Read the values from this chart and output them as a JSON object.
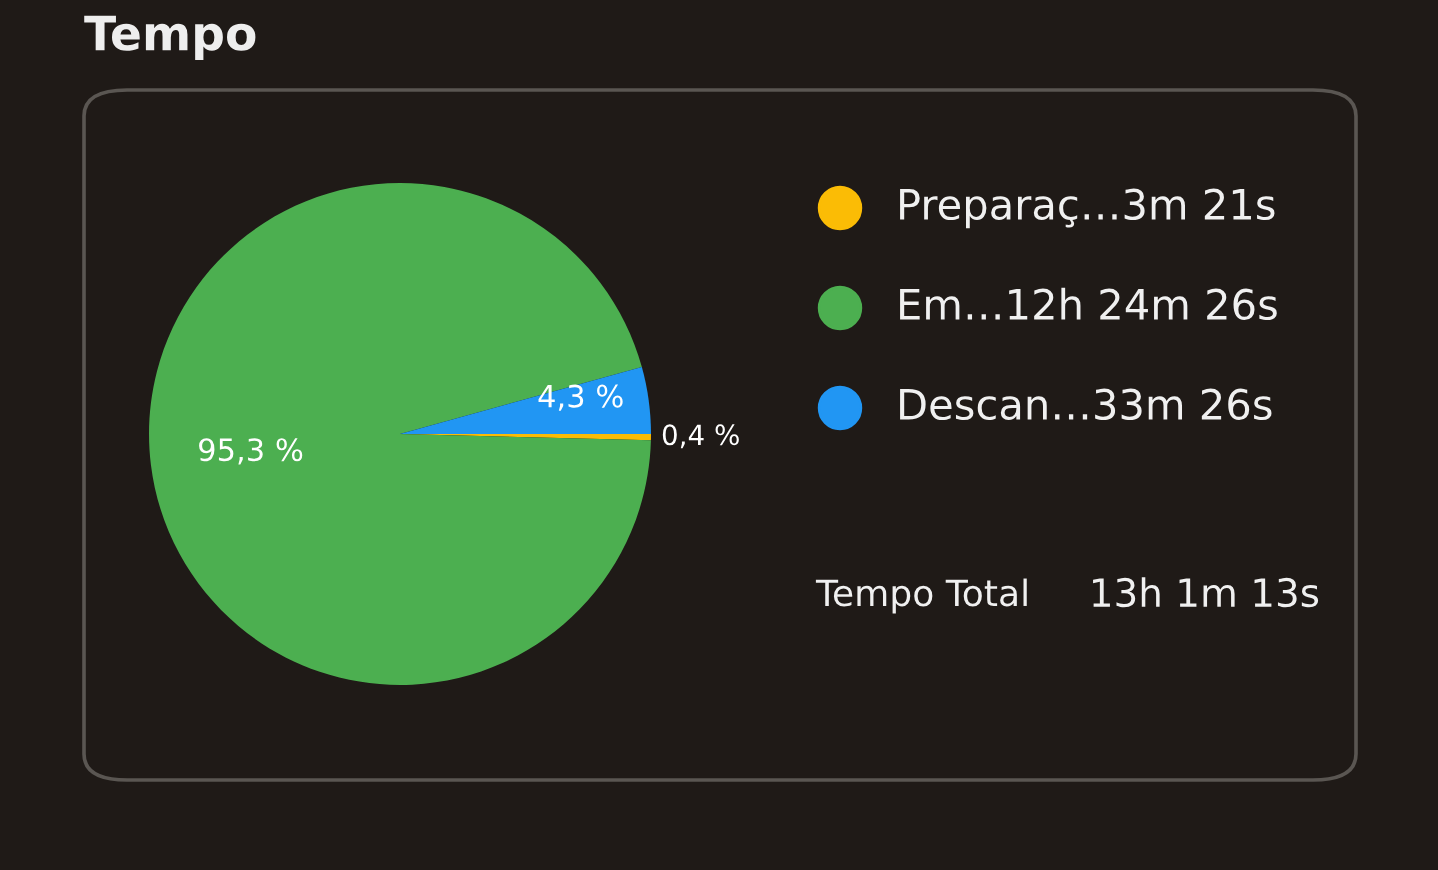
{
  "chart_data": {
    "type": "pie",
    "title": "Tempo",
    "categories": [
      "Preparaç…3m 21s",
      "Em…12h 24m 26s",
      "Descan…33m 26s"
    ],
    "values": [
      0.4,
      95.3,
      4.3
    ],
    "colors": [
      "#fbbc05",
      "#4caf50",
      "#2196f3"
    ],
    "value_labels": [
      "0,4 %",
      "95,3 %",
      "4,3 %"
    ],
    "legend": "right",
    "annotations": [
      "Tempo Total",
      "13h 1m 13s"
    ]
  }
}
